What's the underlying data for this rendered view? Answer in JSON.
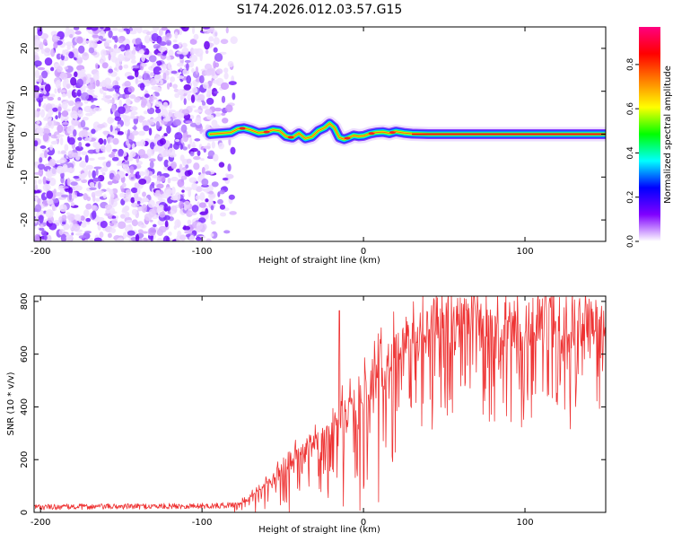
{
  "title": "S174.2026.012.03.57.G15",
  "chart_data": [
    {
      "type": "heatmap",
      "name": "spectrogram",
      "xlabel": "Height of straight line (km)",
      "ylabel": "Frequency (Hz)",
      "xlim": [
        -204,
        150
      ],
      "ylim": [
        -25,
        25
      ],
      "xticks": [
        -200,
        -100,
        0,
        100
      ],
      "yticks": [
        -20,
        -10,
        0,
        10,
        20
      ],
      "noise_region_x": [
        -204,
        -80
      ],
      "signal_track": {
        "x": [
          -95,
          -88,
          -82,
          -78,
          -74,
          -70,
          -65,
          -60,
          -56,
          -52,
          -48,
          -44,
          -40,
          -36,
          -32,
          -28,
          -24,
          -21,
          -18,
          -15,
          -12,
          -9,
          -6,
          -3,
          0,
          4,
          8,
          12,
          16,
          20,
          25,
          30,
          40,
          60,
          80,
          100,
          120,
          150
        ],
        "freq": [
          0,
          0.2,
          0.4,
          1.2,
          1.4,
          1.0,
          0.3,
          0.5,
          1.0,
          0.8,
          -0.5,
          -0.8,
          0.2,
          -1.0,
          -0.6,
          0.8,
          1.5,
          2.5,
          1.5,
          -0.8,
          -1.2,
          -0.8,
          -0.3,
          -0.5,
          -0.4,
          0.1,
          0.4,
          0.5,
          0.2,
          0.6,
          0.3,
          0.1,
          0.0,
          0.0,
          0.0,
          0.0,
          0.0,
          0.0
        ]
      },
      "colorbar": {
        "label": "Normalized spectral amplitude",
        "range": [
          0,
          0.97
        ],
        "ticks": [
          0.0,
          0.2,
          0.4,
          0.6,
          0.8
        ],
        "tick_labels": [
          "0.0",
          "0.2",
          "0.4",
          "0.6",
          "0.8"
        ],
        "colors": [
          "#ffffff",
          "#8000ff",
          "#0000ff",
          "#00ffff",
          "#00ff00",
          "#ffff00",
          "#ff8000",
          "#ff0000",
          "#ff0080"
        ]
      }
    },
    {
      "type": "line",
      "name": "snr",
      "xlabel": "Height of straight line (km)",
      "ylabel": "SNR (10 * v/v)",
      "xlim": [
        -204,
        150
      ],
      "ylim": [
        0,
        820
      ],
      "xticks": [
        -200,
        -100,
        0,
        100
      ],
      "yticks": [
        0,
        200,
        400,
        600,
        800
      ],
      "series": [
        {
          "name": "SNR",
          "color": "#ee3333",
          "trend": {
            "x": [
              -204,
              -90,
              -80,
              -70,
              -60,
              -50,
              -40,
              -30,
              -20,
              -10,
              0,
              10,
              20,
              30,
              40,
              60,
              80,
              100,
              120,
              150
            ],
            "y": [
              20,
              25,
              30,
              60,
              110,
              170,
              220,
              280,
              330,
              390,
              450,
              540,
              620,
              680,
              720,
              730,
              730,
              720,
              720,
              700
            ]
          },
          "spike": {
            "x": -15,
            "y": 765
          }
        }
      ]
    }
  ]
}
